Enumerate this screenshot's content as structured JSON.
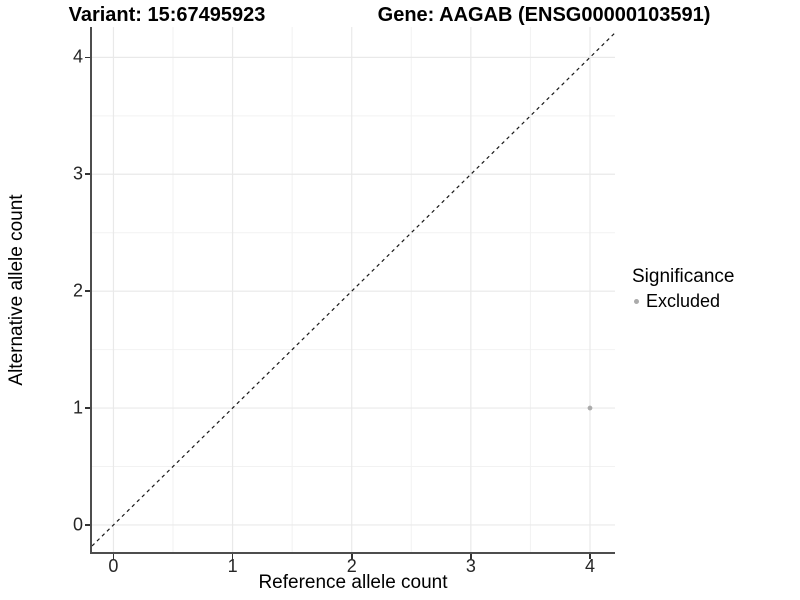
{
  "chart_data": {
    "type": "scatter",
    "variant_title": "Variant: 15:67495923",
    "gene_title": "Gene: AAGAB (ENSG00000103591)",
    "xlabel": "Reference allele count",
    "ylabel": "Alternative allele count",
    "xlim": [
      -0.18,
      4.21
    ],
    "ylim": [
      -0.24,
      4.26
    ],
    "x_major_ticks": [
      0,
      1,
      2,
      3,
      4
    ],
    "x_minor_ticks": [
      0.5,
      1.5,
      2.5,
      3.5
    ],
    "y_major_ticks": [
      0,
      1,
      2,
      3,
      4
    ],
    "y_minor_ticks": [
      0.5,
      1.5,
      2.5,
      3.5
    ],
    "grid": "major+minor",
    "reference_line": {
      "type": "abline",
      "slope": 1,
      "intercept": 0,
      "linestyle": "dashed",
      "color": "#1a1a1a"
    },
    "series": [
      {
        "name": "Excluded",
        "color": "#ababab",
        "points": [
          {
            "x": 4,
            "y": 1
          }
        ]
      }
    ],
    "legend": {
      "title": "Significance",
      "position": "right",
      "items": [
        {
          "label": "Excluded",
          "color": "#ababab",
          "marker": "circle-icon"
        }
      ]
    }
  },
  "colors": {
    "background": "#ffffff",
    "axis_line": "#4d4d4d",
    "tick_mark": "#333333",
    "grid_major": "#e9e9e9",
    "grid_minor": "#f2f2f2",
    "point": "#ababab"
  }
}
